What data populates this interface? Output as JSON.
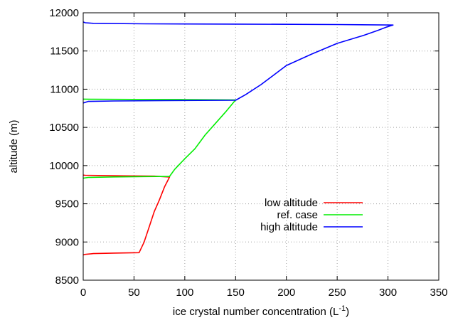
{
  "chart_data": {
    "type": "line",
    "xlabel": "ice crystal number concentration (L",
    "xlabel_sup": "-1",
    "xlabel_end": ")",
    "ylabel": "altitude (m)",
    "xlim": [
      0,
      350
    ],
    "ylim": [
      8500,
      12000
    ],
    "xticks": [
      0,
      50,
      100,
      150,
      200,
      250,
      300,
      350
    ],
    "yticks": [
      8500,
      9000,
      9500,
      10000,
      10500,
      11000,
      11500,
      12000
    ],
    "grid": true,
    "legend_position": "bottom-right",
    "series": [
      {
        "name": "low altitude",
        "color": "#ff0000",
        "points": [
          [
            0,
            8830
          ],
          [
            2,
            8838
          ],
          [
            10,
            8848
          ],
          [
            30,
            8855
          ],
          [
            55,
            8860
          ],
          [
            60,
            9000
          ],
          [
            65,
            9200
          ],
          [
            70,
            9400
          ],
          [
            75,
            9550
          ],
          [
            80,
            9720
          ],
          [
            85,
            9850
          ],
          [
            70,
            9862
          ],
          [
            40,
            9866
          ],
          [
            15,
            9870
          ],
          [
            2,
            9873
          ],
          [
            0,
            9875
          ]
        ]
      },
      {
        "name": "ref. case",
        "color": "#00ee00",
        "points": [
          [
            0,
            9835
          ],
          [
            5,
            9845
          ],
          [
            30,
            9852
          ],
          [
            60,
            9856
          ],
          [
            85,
            9858
          ],
          [
            90,
            9950
          ],
          [
            100,
            10090
          ],
          [
            110,
            10220
          ],
          [
            120,
            10400
          ],
          [
            130,
            10550
          ],
          [
            140,
            10700
          ],
          [
            150,
            10860
          ],
          [
            100,
            10864
          ],
          [
            50,
            10866
          ],
          [
            10,
            10868
          ],
          [
            0,
            10870
          ]
        ]
      },
      {
        "name": "high altitude",
        "color": "#0000ff",
        "points": [
          [
            0,
            10820
          ],
          [
            5,
            10840
          ],
          [
            30,
            10846
          ],
          [
            80,
            10850
          ],
          [
            150,
            10855
          ],
          [
            160,
            10930
          ],
          [
            175,
            11060
          ],
          [
            200,
            11310
          ],
          [
            225,
            11460
          ],
          [
            250,
            11600
          ],
          [
            275,
            11700
          ],
          [
            290,
            11770
          ],
          [
            300,
            11820
          ],
          [
            305,
            11840
          ],
          [
            250,
            11846
          ],
          [
            150,
            11852
          ],
          [
            60,
            11856
          ],
          [
            10,
            11862
          ],
          [
            2,
            11870
          ],
          [
            0,
            11880
          ]
        ]
      }
    ]
  }
}
